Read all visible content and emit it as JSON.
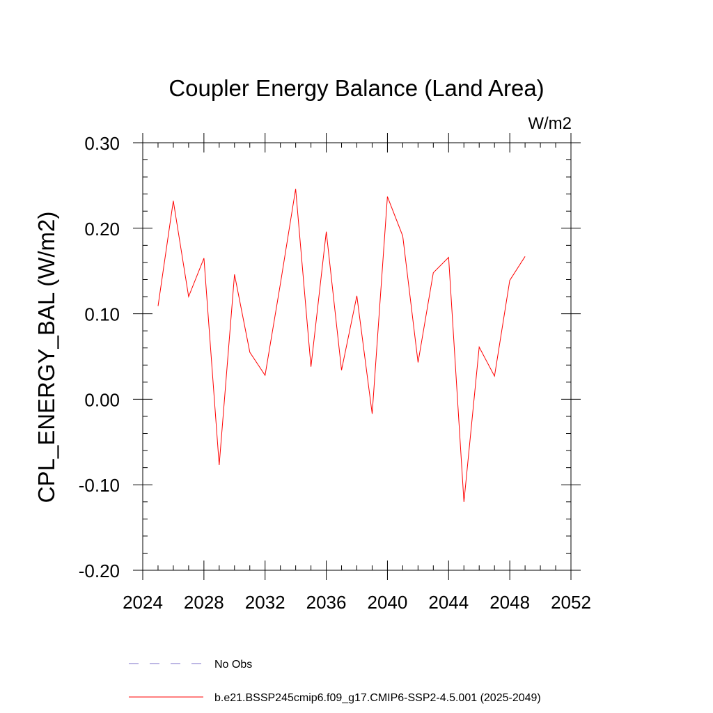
{
  "chart_data": {
    "type": "line",
    "title": "Coupler Energy Balance (Land Area)",
    "units": "W/m2",
    "ylabel": "CPL_ENERGY_BAL  (W/m2)",
    "xlabel": "",
    "xlim": [
      2024,
      2052
    ],
    "ylim": [
      -0.2,
      0.3
    ],
    "xticks": [
      "2024",
      "2028",
      "2032",
      "2036",
      "2040",
      "2044",
      "2048",
      "2052"
    ],
    "yticks": [
      "-0.20",
      "-0.10",
      "0.00",
      "0.10",
      "0.20",
      "0.30"
    ],
    "series": [
      {
        "name": "b.e21.BSSP245cmip6.f09_g17.CMIP6-SSP2-4.5.001 (2025-2049)",
        "color": "#ff0000",
        "x": [
          2025,
          2026,
          2027,
          2028,
          2029,
          2030,
          2031,
          2032,
          2033,
          2034,
          2035,
          2036,
          2037,
          2038,
          2039,
          2040,
          2041,
          2042,
          2043,
          2044,
          2045,
          2046,
          2047,
          2048,
          2049
        ],
        "values": [
          0.109,
          0.232,
          0.12,
          0.165,
          -0.077,
          0.146,
          0.055,
          0.028,
          0.135,
          0.246,
          0.038,
          0.196,
          0.034,
          0.121,
          -0.017,
          0.237,
          0.191,
          0.043,
          0.148,
          0.166,
          -0.12,
          0.061,
          0.027,
          0.139,
          0.167
        ]
      }
    ],
    "legend": [
      {
        "label": "No Obs",
        "color": "#7b6fc9",
        "style": "dashed"
      },
      {
        "label": "b.e21.BSSP245cmip6.f09_g17.CMIP6-SSP2-4.5.001 (2025-2049)",
        "color": "#ff0000",
        "style": "solid"
      }
    ],
    "legend_position": "bottom"
  }
}
